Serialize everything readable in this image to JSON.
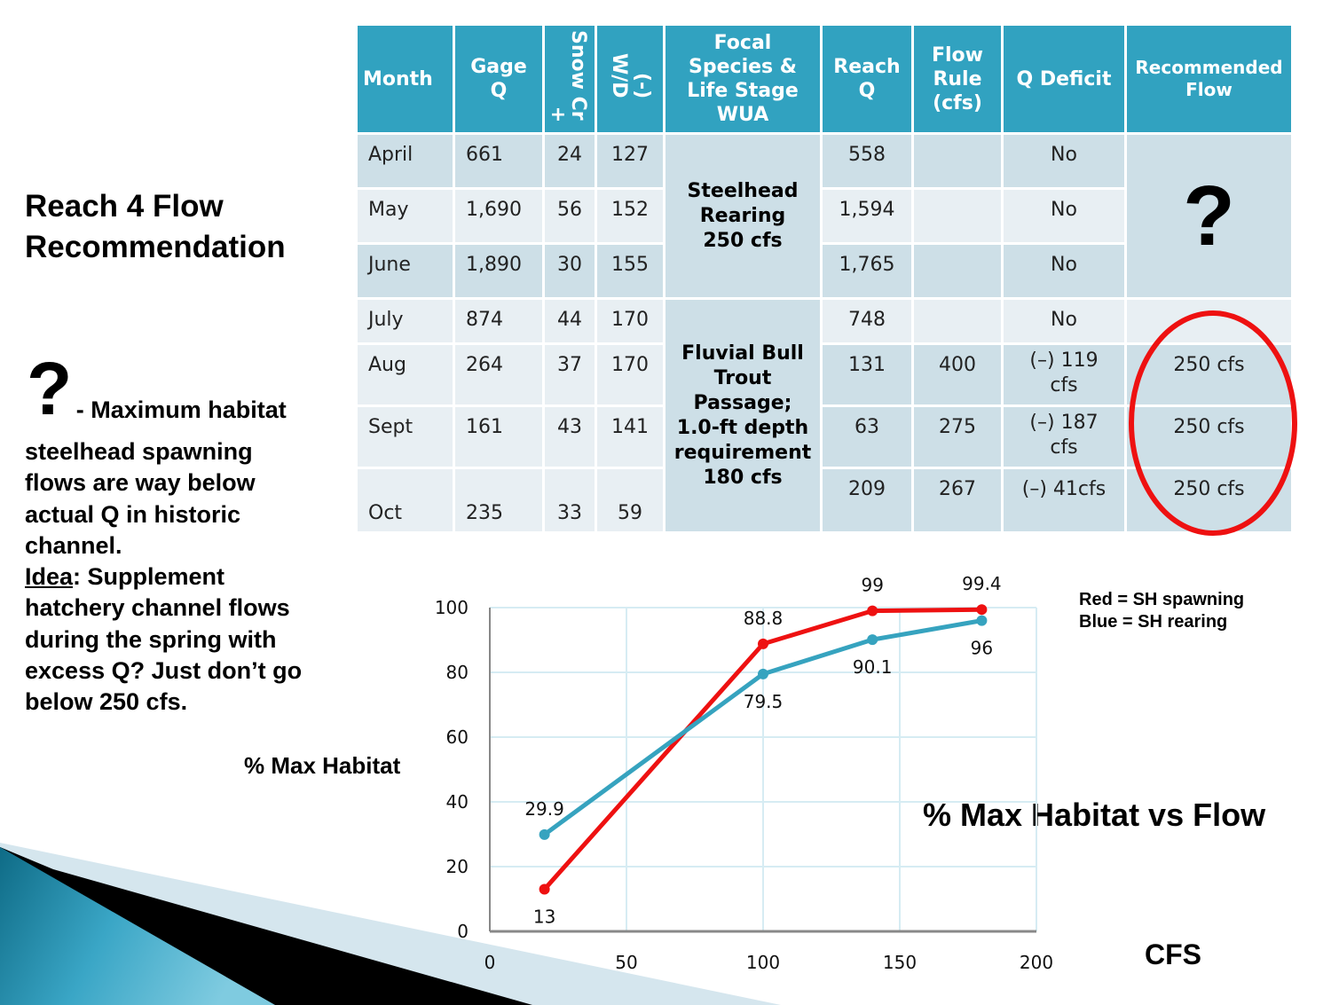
{
  "slide": {
    "title_line1": "Reach 4 Flow",
    "title_line2": "Recommendation",
    "question_mark": "?",
    "note_suffix": "- Maximum habitat",
    "body_lines": [
      "steelhead spawning",
      "flows are way below",
      "actual Q in historic",
      "channel."
    ],
    "idea_label": "Idea",
    "idea_text_first": ": Supplement",
    "idea_lines": [
      "hatchery channel flows",
      "during the spring with",
      "excess Q?  Just don’t go",
      "below 250 cfs."
    ]
  },
  "table": {
    "headers": {
      "month": "Month",
      "gage_q_1": "Gage",
      "gage_q_2": "Q",
      "snow_plus": "+",
      "snow_cr": "Snow Cr",
      "wd_1": "W/D",
      "wd_2": "(-)",
      "focal_1": "Focal",
      "focal_2": "Species &",
      "focal_3": "Life Stage",
      "focal_4": "WUA",
      "reach_1": "Reach",
      "reach_2": "Q",
      "flowrule_1": "Flow",
      "flowrule_2": "Rule",
      "flowrule_3": "(cfs)",
      "qdeficit": "Q Deficit",
      "rec_1": "Recommended",
      "rec_2": "Flow"
    },
    "rows": [
      {
        "month": "April",
        "gage_q": "661",
        "snow_cr": "24",
        "wd": "127",
        "reach_q": "558",
        "flow_rule": "",
        "q_deficit": "No",
        "recommended": ""
      },
      {
        "month": "May",
        "gage_q": "1,690",
        "snow_cr": "56",
        "wd": "152",
        "reach_q": "1,594",
        "flow_rule": "",
        "q_deficit": "No",
        "recommended": ""
      },
      {
        "month": "June",
        "gage_q": "1,890",
        "snow_cr": "30",
        "wd": "155",
        "reach_q": "1,765",
        "flow_rule": "",
        "q_deficit": "No",
        "recommended": ""
      },
      {
        "month": "July",
        "gage_q": "874",
        "snow_cr": "44",
        "wd": "170",
        "reach_q": "748",
        "flow_rule": "",
        "q_deficit": "No",
        "recommended": ""
      },
      {
        "month": "Aug",
        "gage_q": "264",
        "snow_cr": "37",
        "wd": "170",
        "reach_q": "131",
        "flow_rule": "400",
        "q_deficit": "(–) 119 cfs",
        "recommended": "250 cfs"
      },
      {
        "month": "Sept",
        "gage_q": "161",
        "snow_cr": "43",
        "wd": "141",
        "reach_q": "63",
        "flow_rule": "275",
        "q_deficit": "(–) 187 cfs",
        "recommended": "250 cfs"
      },
      {
        "month": "Oct",
        "gage_q": "235",
        "snow_cr": "33",
        "wd": "59",
        "reach_q": "209",
        "flow_rule": "267",
        "q_deficit": "(–) 41cfs",
        "recommended": "250 cfs"
      }
    ],
    "focal_steelhead": [
      "Steelhead",
      "Rearing",
      "250 cfs"
    ],
    "focal_bulltrout": [
      "Fluvial Bull",
      "Trout",
      "Passage;",
      "1.0-ft depth",
      "requirement",
      "180 cfs"
    ],
    "recommended_unknown": "?",
    "highlight_color": "#ee1111"
  },
  "chart_data": {
    "type": "line",
    "title": "% Max Habitat vs Flow",
    "xlabel": "CFS",
    "ylabel": "% Max Habitat",
    "xlim": [
      0,
      200
    ],
    "ylim": [
      0,
      100
    ],
    "xticks": [
      0,
      50,
      100,
      150,
      200
    ],
    "yticks": [
      0,
      20,
      40,
      60,
      80,
      100
    ],
    "grid": true,
    "legend_lines": [
      "Red = SH spawning",
      "Blue = SH rearing"
    ],
    "legend_placement": "top-right",
    "series": [
      {
        "name": "SH spawning",
        "color": "#ee1111",
        "x": [
          20,
          100,
          140,
          180
        ],
        "y": [
          13,
          88.8,
          99,
          99.4
        ],
        "labels": [
          "13",
          "88.8",
          "99",
          "99.4"
        ],
        "label_pos": [
          "below",
          "above",
          "above",
          "above"
        ]
      },
      {
        "name": "SH rearing",
        "color": "#36a3bf",
        "x": [
          20,
          100,
          140,
          180
        ],
        "y": [
          29.9,
          79.5,
          90.1,
          96
        ],
        "labels": [
          "29.9",
          "79.5",
          "90.1",
          "96"
        ],
        "label_pos": [
          "above",
          "below",
          "below",
          "below"
        ]
      }
    ]
  }
}
